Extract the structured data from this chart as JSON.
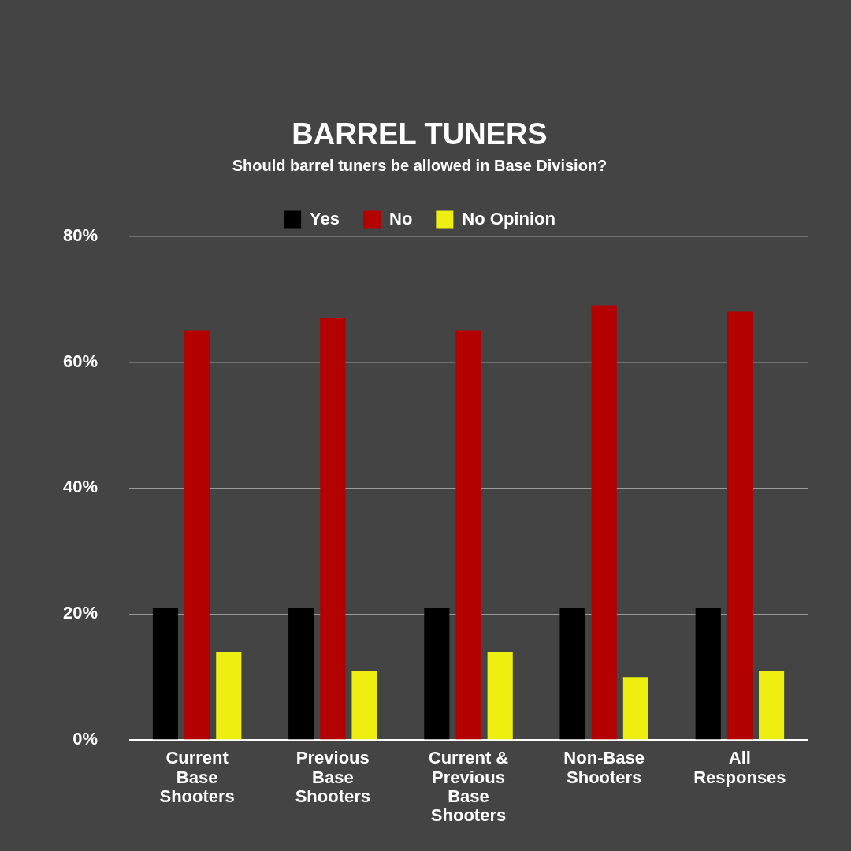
{
  "chart_data": {
    "type": "bar",
    "title": "BARREL TUNERS",
    "subtitle": "Should barrel tuners be allowed in Base Division?",
    "categories": [
      "Current Base Shooters",
      "Previous Base Shooters",
      "Current & Previous Base Shooters",
      "Non-Base Shooters",
      "All Responses"
    ],
    "series": [
      {
        "name": "Yes",
        "color": "#000000",
        "values": [
          21,
          21,
          21,
          21,
          21
        ]
      },
      {
        "name": "No",
        "color": "#b30000",
        "values": [
          65,
          67,
          65,
          69,
          68
        ]
      },
      {
        "name": "No Opinion",
        "color": "#eeee11",
        "values": [
          14,
          11,
          14,
          10,
          11
        ]
      }
    ],
    "ylim": [
      0,
      80
    ],
    "yticks": [
      {
        "value": 0,
        "label": "0%"
      },
      {
        "value": 20,
        "label": "20%"
      },
      {
        "value": 40,
        "label": "40%"
      },
      {
        "value": 60,
        "label": "60%"
      },
      {
        "value": 80,
        "label": "80%"
      }
    ],
    "grid": "y",
    "legend": "top"
  }
}
